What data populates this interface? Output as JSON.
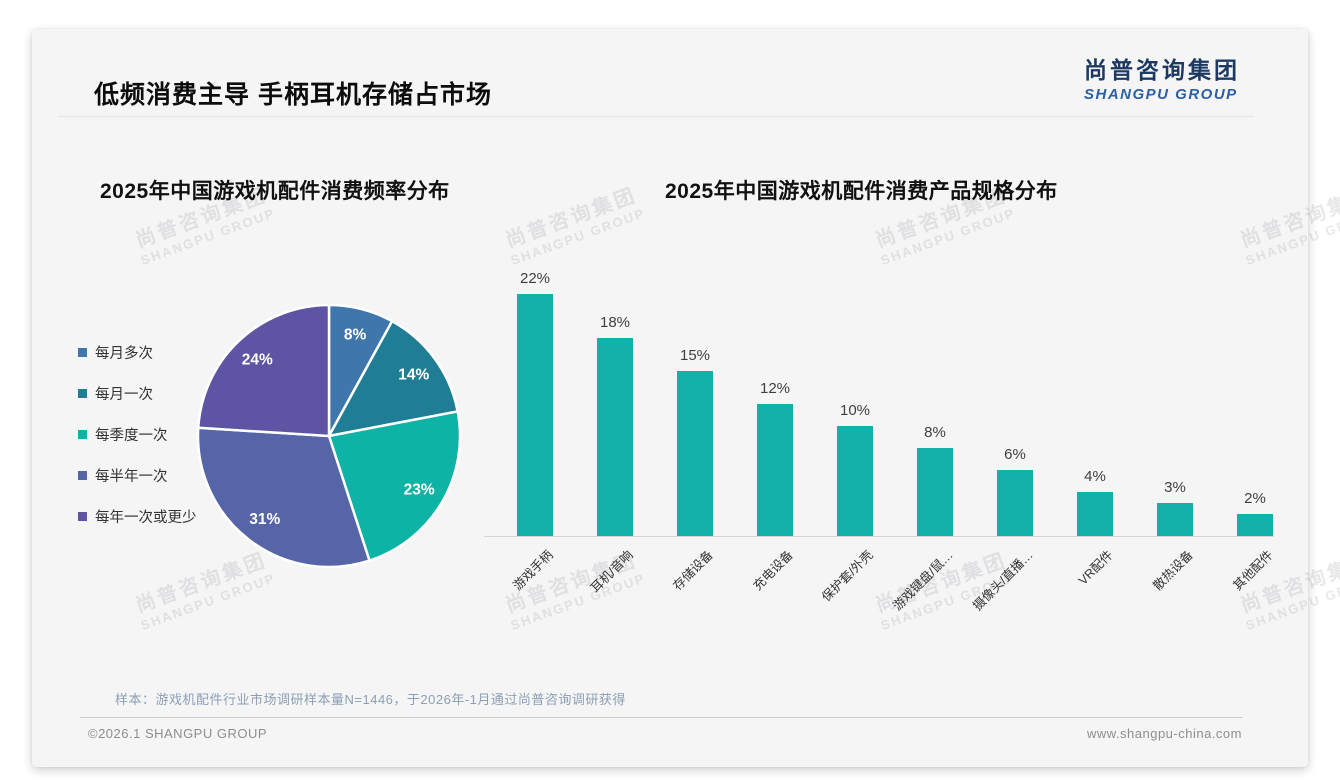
{
  "slide": {
    "title": "低频消费主导 手柄耳机存储占市场",
    "logo": {
      "cn": "尚普咨询集团",
      "en": "SHANGPU GROUP"
    },
    "watermark": {
      "cn": "尚普咨询集团",
      "en": "SHANGPU GROUP"
    },
    "footnote": "样本：游戏机配件行业市场调研样本量N=1446，于2026年-1月通过尚普咨询调研获得",
    "footer_left": "©2026.1 SHANGPU GROUP",
    "footer_right": "www.shangpu-china.com"
  },
  "chart_data": [
    {
      "type": "pie",
      "title": "2025年中国游戏机配件消费频率分布",
      "categories": [
        "每月多次",
        "每月一次",
        "每季度一次",
        "每半年一次",
        "每年一次或更少"
      ],
      "values": [
        8,
        14,
        23,
        31,
        24
      ],
      "labels": [
        "8%",
        "14%",
        "23%",
        "31%",
        "24%"
      ],
      "colors": [
        "#3f76ab",
        "#1f7e95",
        "#0db3a5",
        "#5565a7",
        "#5d55a3"
      ],
      "legend_position": "left",
      "start_angle_deg": 0,
      "direction": "clockwise",
      "slice_border_color": "#ffffff",
      "label_color": "#ffffff"
    },
    {
      "type": "bar",
      "title": "2025年中国游戏机配件消费产品规格分布",
      "categories": [
        "游戏手柄",
        "耳机/音响",
        "存储设备",
        "充电设备",
        "保护套/外壳",
        "游戏键盘/鼠…",
        "摄像头/直播…",
        "VR配件",
        "散热设备",
        "其他配件"
      ],
      "values": [
        22,
        18,
        15,
        12,
        10,
        8,
        6,
        4,
        3,
        2
      ],
      "labels": [
        "22%",
        "18%",
        "15%",
        "12%",
        "10%",
        "8%",
        "6%",
        "4%",
        "3%",
        "2%"
      ],
      "bar_color": "#12b2ab",
      "ylim": [
        0,
        24
      ],
      "grid": false,
      "value_labels": true,
      "xlabel": "",
      "ylabel": ""
    }
  ]
}
